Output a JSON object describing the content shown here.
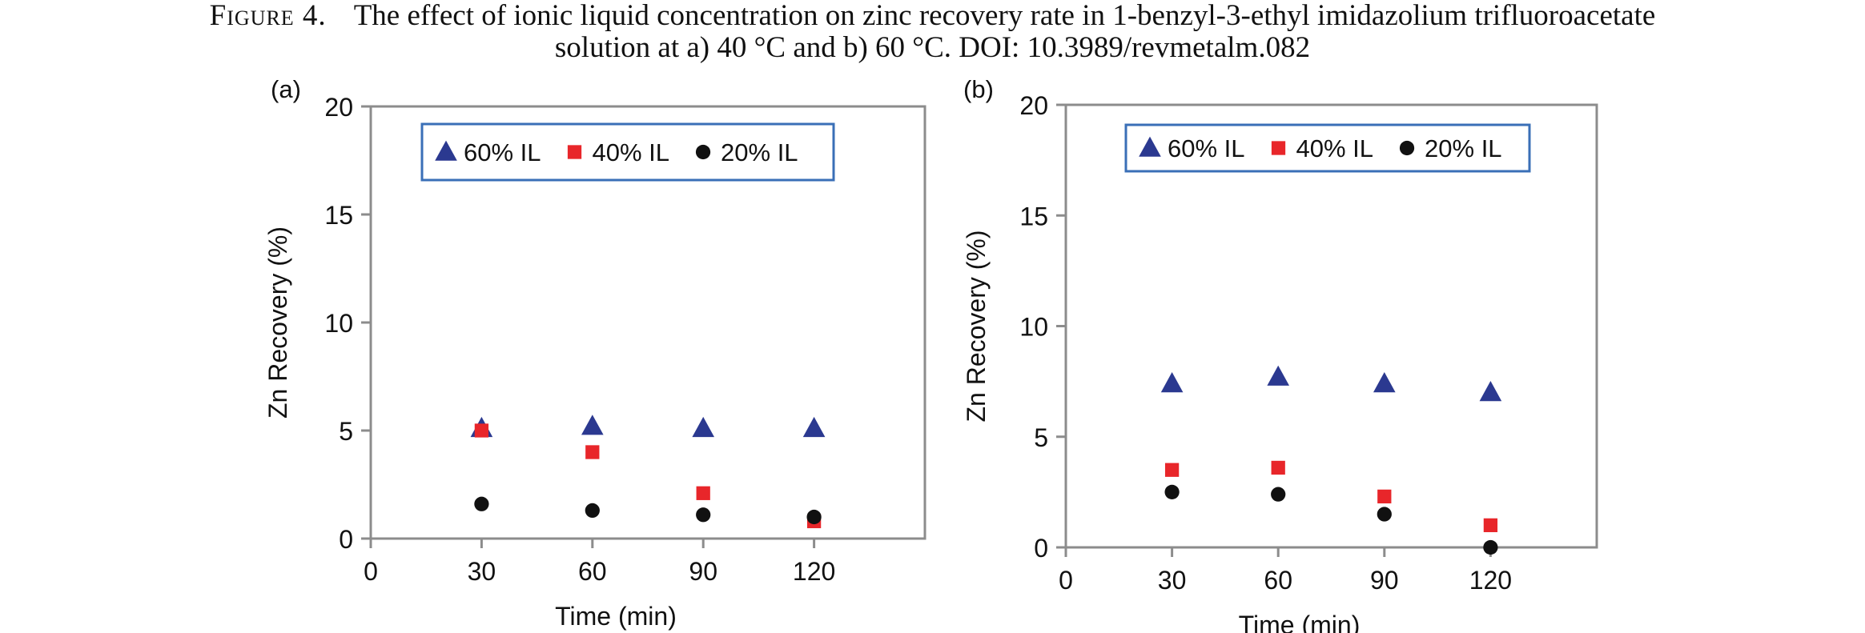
{
  "caption": {
    "label": "Figure 4.",
    "line1": "The effect of ionic liquid concentration on zinc recovery rate in 1-benzyl-3-ethyl imidazolium trifluoroacetate",
    "line2": "solution at a) 40 °C and b) 60 °C. DOI: 10.3989/revmetalm.082"
  },
  "chart_data": [
    {
      "panel_label": "(a)",
      "type": "scatter",
      "xlabel": "Time (min)",
      "ylabel": "Zn Recovery (%)",
      "xlim": [
        0,
        150
      ],
      "ylim": [
        0,
        20
      ],
      "xticks": [
        0,
        30,
        60,
        90,
        120
      ],
      "yticks": [
        0,
        5,
        10,
        15,
        20
      ],
      "grid": false,
      "legend_position": "top",
      "x": [
        30,
        60,
        90,
        120
      ],
      "series": [
        {
          "name": "60% IL",
          "marker": "triangle",
          "color": "#2b3990",
          "values": [
            5.1,
            5.2,
            5.1,
            5.1
          ]
        },
        {
          "name": "40% IL",
          "marker": "square",
          "color": "#e8262a",
          "values": [
            5.0,
            4.0,
            2.1,
            0.8
          ]
        },
        {
          "name": "20% IL",
          "marker": "circle",
          "color": "#111111",
          "values": [
            1.6,
            1.3,
            1.1,
            1.0
          ]
        }
      ]
    },
    {
      "panel_label": "(b)",
      "type": "scatter",
      "xlabel": "Time (min)",
      "ylabel": "Zn  Recovery (%)",
      "xlim": [
        0,
        150
      ],
      "ylim": [
        0,
        20
      ],
      "xticks": [
        0,
        30,
        60,
        90,
        120
      ],
      "yticks": [
        0,
        5,
        10,
        15,
        20
      ],
      "grid": false,
      "legend_position": "top",
      "x": [
        30,
        60,
        90,
        120
      ],
      "series": [
        {
          "name": "60% IL",
          "marker": "triangle",
          "color": "#2b3990",
          "values": [
            7.4,
            7.7,
            7.4,
            7.0
          ]
        },
        {
          "name": "40% IL",
          "marker": "square",
          "color": "#e8262a",
          "values": [
            3.5,
            3.6,
            2.3,
            1.0
          ]
        },
        {
          "name": "20% IL",
          "marker": "circle",
          "color": "#111111",
          "values": [
            2.5,
            2.4,
            1.5,
            0.0
          ]
        }
      ]
    }
  ]
}
